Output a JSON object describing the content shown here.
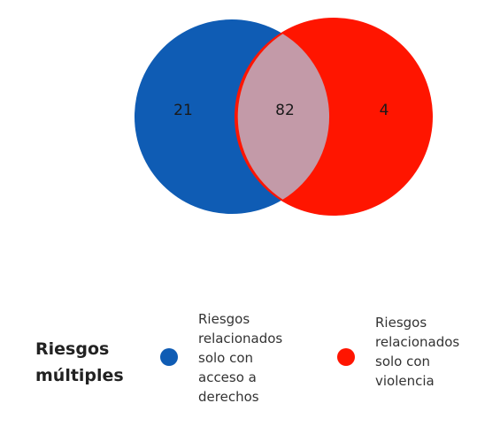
{
  "venn": {
    "left_only": "21",
    "intersection": "82",
    "right_only": "4",
    "colors": {
      "left": "#0f5cb4",
      "right": "#ff1500",
      "intersection": "#c39aa8"
    }
  },
  "legend": {
    "title_line1": "Riesgos",
    "title_line2": "múltiples",
    "item1": {
      "lines": [
        "Riesgos",
        "relacionados",
        "solo con",
        "acceso a",
        "derechos"
      ],
      "color": "#0f5cb4"
    },
    "item2": {
      "lines": [
        "Riesgos",
        "relacionados",
        "solo con",
        "violencia"
      ],
      "color": "#ff1500"
    }
  }
}
